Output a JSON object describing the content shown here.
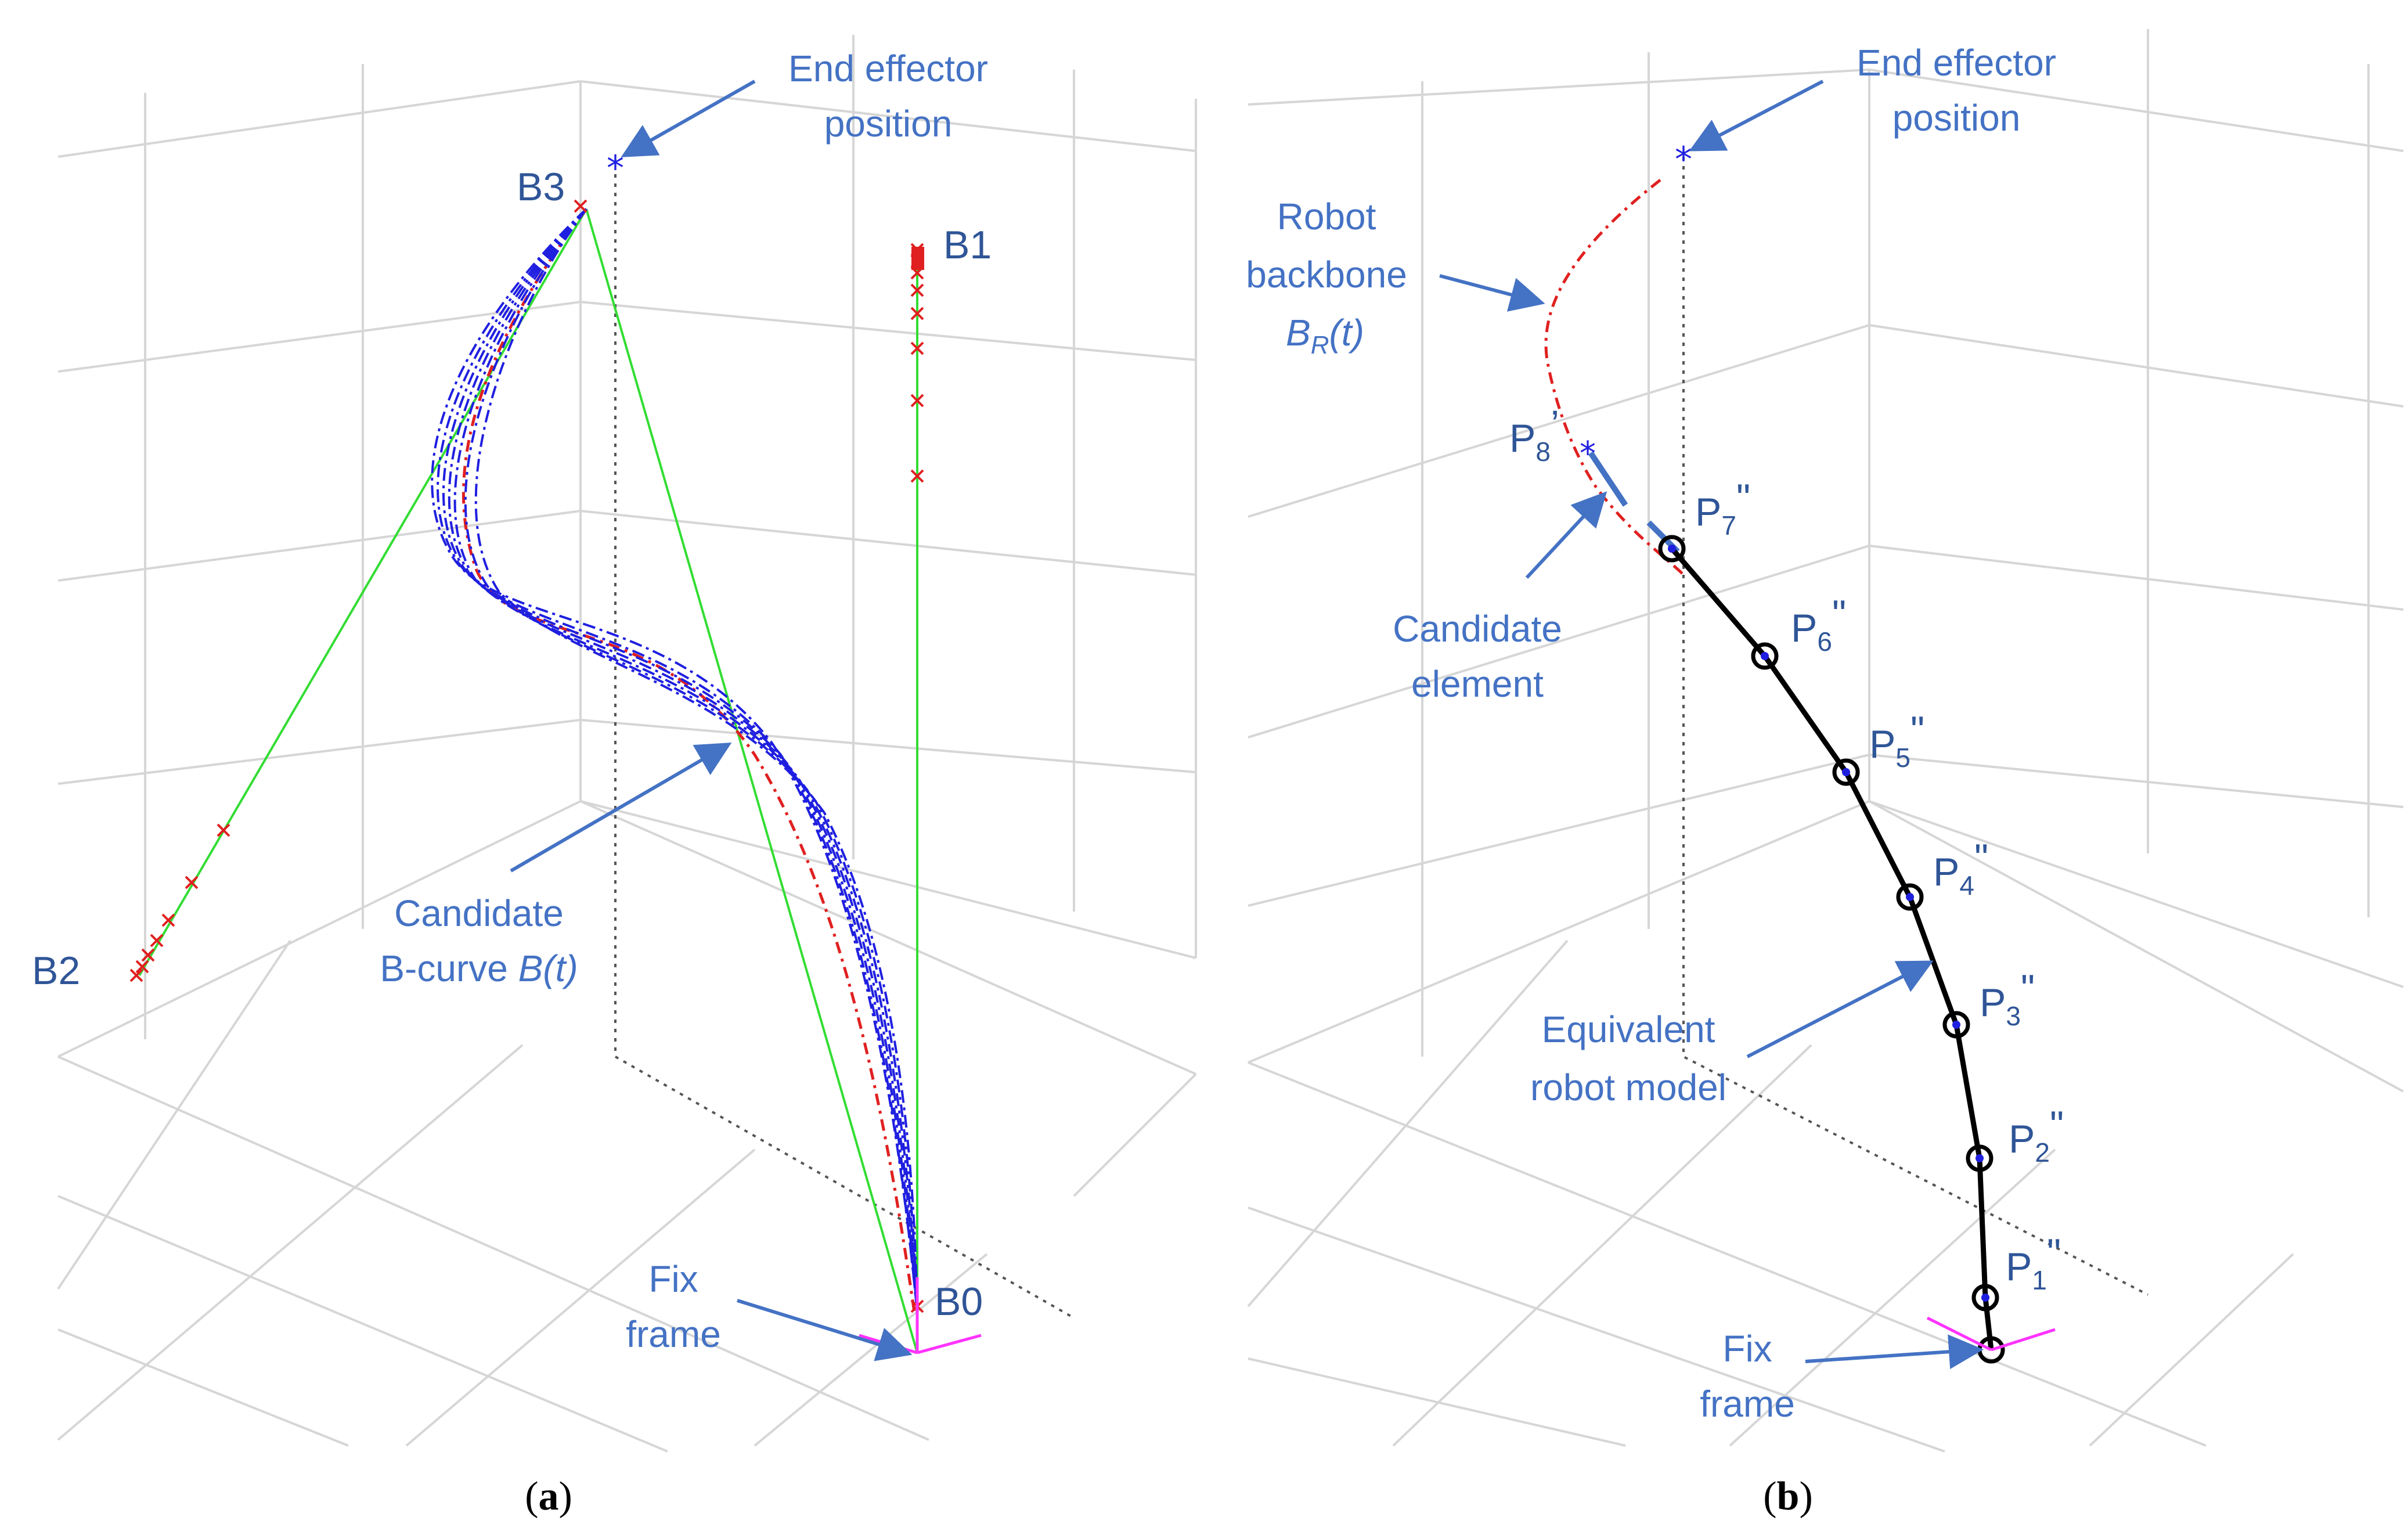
{
  "panel_a": {
    "caption_open": "(",
    "caption_letter": "a",
    "caption_close": ")",
    "end_effector_line1": "End effector",
    "end_effector_line2": "position",
    "b0": "B0",
    "b1": "B1",
    "b2": "B2",
    "b3": "B3",
    "candidate_line1": "Candidate",
    "candidate_line2_prefix": "B-curve ",
    "candidate_line2_math": "B(t)",
    "fix_line1": "Fix",
    "fix_line2": "frame"
  },
  "panel_b": {
    "caption_open": "(",
    "caption_letter": "b",
    "caption_close": ")",
    "end_effector_line1": "End effector",
    "end_effector_line2": "position",
    "backbone_line1": "Robot",
    "backbone_line2": "backbone",
    "backbone_math_b": "B",
    "backbone_math_sub": "R",
    "backbone_math_t": "(t)",
    "p8": "P",
    "p8_sub": "8",
    "p8_sup": "’",
    "candidate_line1": "Candidate",
    "candidate_line2": "element",
    "equiv_line1": "Equivalent",
    "equiv_line2": "robot model",
    "fix_line1": "Fix",
    "fix_line2": "frame",
    "joints": [
      {
        "p": "P",
        "sub": "7",
        "sup": "\""
      },
      {
        "p": "P",
        "sub": "6",
        "sup": "\""
      },
      {
        "p": "P",
        "sub": "5",
        "sup": "\""
      },
      {
        "p": "P",
        "sub": "4",
        "sup": "\""
      },
      {
        "p": "P",
        "sub": "3",
        "sup": "\""
      },
      {
        "p": "P",
        "sub": "2",
        "sup": "\""
      },
      {
        "p": "P",
        "sub": "1",
        "sup": "\""
      }
    ]
  },
  "colors": {
    "label_blue": "#4472C4",
    "curve_blue": "#1F1FE0",
    "backbone_red": "#E02020",
    "guide_green": "#33DD33",
    "frame_magenta": "#FF33FF",
    "robot_black": "#000000"
  }
}
